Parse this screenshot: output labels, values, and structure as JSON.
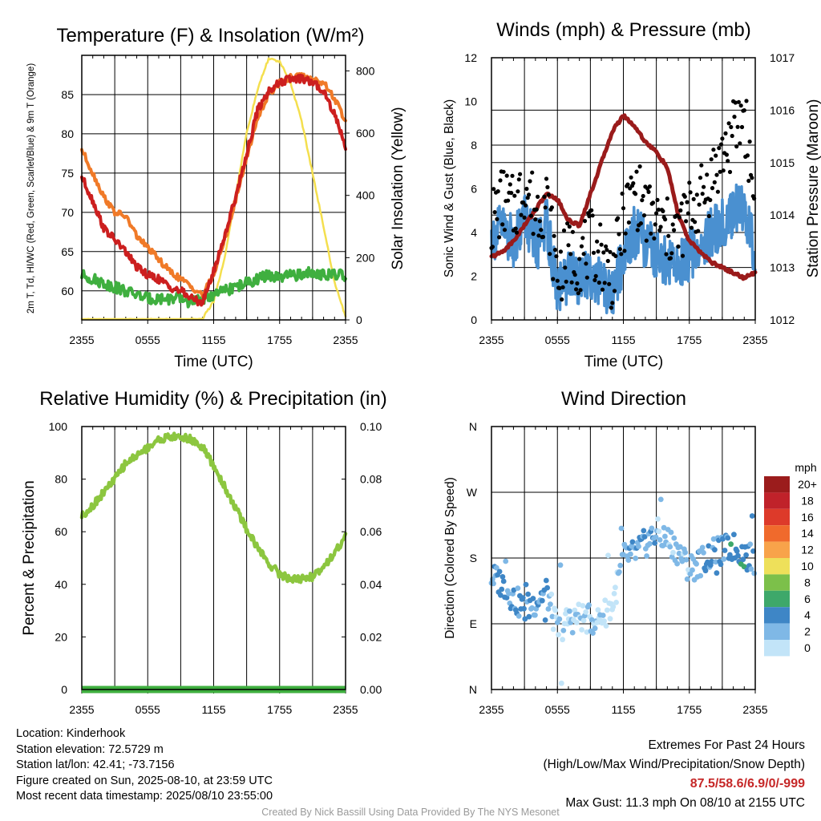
{
  "colors": {
    "temp_red": "#cc1f1f",
    "dewpoint_green": "#3faf3f",
    "temp9m_orange": "#f07a28",
    "solar_yellow": "#f4df4e",
    "wind_blue": "#4a90d0",
    "gust_black": "#000000",
    "pressure_maroon": "#9a1b1b",
    "humidity_green": "#8cc63f",
    "precip_green": "#3faf3f",
    "extremes_red": "#c62828"
  },
  "chart_data": [
    {
      "id": "temperature",
      "type": "line",
      "title": "Temperature (F) & Insolation (W/m²)",
      "xlabel": "Time (UTC)",
      "ylabel_left": "2m T, Td, HI/WC (Red, Green, Scarlet/Blue) & 9m T (Orange)",
      "ylabel_right": "Solar Insolation (Yellow)",
      "x_ticks": [
        "2355",
        "0555",
        "1155",
        "1755",
        "2355"
      ],
      "y_ticks_left": [
        60,
        65,
        70,
        75,
        80,
        85
      ],
      "y_ticks_right": [
        0,
        200,
        400,
        600,
        800
      ],
      "ylim_left": [
        56.3,
        90.0
      ],
      "ylim_right": [
        0,
        850
      ],
      "x_hours": [
        0,
        1,
        2,
        3,
        4,
        5,
        6,
        7,
        8,
        9,
        10,
        11,
        12,
        13,
        14,
        15,
        16,
        17,
        18,
        19,
        20,
        21,
        22,
        23,
        24
      ],
      "series": [
        {
          "name": "2m T",
          "axis": "left",
          "color": "#cc1f1f",
          "values": [
            74.5,
            71.5,
            68.0,
            66.5,
            65.0,
            63.0,
            62.0,
            61.5,
            60.5,
            60.0,
            59.0,
            58.5,
            62.5,
            67.0,
            72.0,
            77.5,
            83.0,
            85.5,
            86.5,
            87.0,
            87.0,
            86.5,
            85.5,
            82.5,
            78.5
          ]
        },
        {
          "name": "9m T",
          "axis": "left",
          "color": "#f07a28",
          "values": [
            78.0,
            75.0,
            72.0,
            70.0,
            69.5,
            67.0,
            65.5,
            64.0,
            62.5,
            61.5,
            60.5,
            59.5,
            62.0,
            66.5,
            71.5,
            77.0,
            82.0,
            85.0,
            86.5,
            87.2,
            87.3,
            87.0,
            86.5,
            84.5,
            81.5
          ]
        },
        {
          "name": "2m Td",
          "axis": "left",
          "color": "#3faf3f",
          "values": [
            62.0,
            61.5,
            61.0,
            60.5,
            60.0,
            59.5,
            59.0,
            59.0,
            59.0,
            59.0,
            58.5,
            59.0,
            59.5,
            60.0,
            60.5,
            61.0,
            61.5,
            62.0,
            61.5,
            62.0,
            62.0,
            62.5,
            62.0,
            62.0,
            62.0
          ]
        },
        {
          "name": "Solar",
          "axis": "right",
          "color": "#f4df4e",
          "values": [
            0,
            0,
            0,
            0,
            0,
            0,
            0,
            0,
            0,
            0,
            0,
            5,
            60,
            200,
            400,
            600,
            740,
            840,
            830,
            760,
            640,
            470,
            300,
            120,
            10
          ]
        }
      ]
    },
    {
      "id": "winds",
      "type": "scatter",
      "title": "Winds (mph) & Pressure (mb)",
      "xlabel": "Time (UTC)",
      "ylabel_left": "Sonic Wind & Gust (Blue, Black)",
      "ylabel_right": "Station Pressure (Maroon)",
      "x_ticks": [
        "2355",
        "0555",
        "1155",
        "1755",
        "2355"
      ],
      "y_ticks_left": [
        0,
        2,
        4,
        6,
        8,
        10,
        12
      ],
      "y_ticks_right": [
        1012,
        1013,
        1014,
        1015,
        1016,
        1017
      ],
      "ylim_left": [
        0,
        12
      ],
      "ylim_right": [
        1012,
        1017
      ],
      "x_hours": [
        0,
        1,
        2,
        3,
        4,
        5,
        6,
        7,
        8,
        9,
        10,
        11,
        12,
        13,
        14,
        15,
        16,
        17,
        18,
        19,
        20,
        21,
        22,
        23,
        24
      ],
      "series": [
        {
          "name": "Sonic Wind",
          "axis": "left",
          "color": "#4a90d0",
          "values": [
            3.8,
            4.2,
            3.5,
            4.8,
            3.2,
            4.5,
            1.2,
            2.0,
            1.8,
            2.2,
            1.6,
            1.0,
            3.0,
            4.0,
            3.5,
            3.0,
            2.5,
            2.5,
            3.0,
            3.2,
            4.0,
            4.5,
            5.0,
            5.2,
            3.0
          ]
        },
        {
          "name": "Gust",
          "axis": "left",
          "color": "#000000",
          "values": [
            4.5,
            5.5,
            5.0,
            6.2,
            5.0,
            5.5,
            2.0,
            3.0,
            2.8,
            3.5,
            3.0,
            2.0,
            4.5,
            6.0,
            5.0,
            4.5,
            4.0,
            4.0,
            5.0,
            5.5,
            6.5,
            7.5,
            8.5,
            9.5,
            5.0
          ]
        },
        {
          "name": "Station Pressure",
          "axis": "right",
          "color": "#9a1b1b",
          "values": [
            1013.2,
            1013.3,
            1013.5,
            1013.8,
            1014.1,
            1014.4,
            1014.3,
            1013.9,
            1013.8,
            1014.4,
            1015.0,
            1015.6,
            1015.9,
            1015.7,
            1015.4,
            1015.2,
            1014.9,
            1014.0,
            1013.5,
            1013.3,
            1013.1,
            1013.0,
            1012.9,
            1012.8,
            1012.9
          ]
        }
      ]
    },
    {
      "id": "humidity",
      "type": "line",
      "title": "Relative Humidity (%) & Precipitation (in)",
      "ylabel_left": "Percent & Precipitation",
      "x_ticks": [
        "2355",
        "0555",
        "1155",
        "1755",
        "2355"
      ],
      "y_ticks_left": [
        0,
        20,
        40,
        60,
        80,
        100
      ],
      "y_ticks_right": [
        "0.00",
        "0.02",
        "0.04",
        "0.06",
        "0.08",
        "0.10"
      ],
      "ylim_left": [
        0,
        100
      ],
      "ylim_right": [
        0,
        0.1
      ],
      "x_hours": [
        0,
        1,
        2,
        3,
        4,
        5,
        6,
        7,
        8,
        9,
        10,
        11,
        12,
        13,
        14,
        15,
        16,
        17,
        18,
        19,
        20,
        21,
        22,
        23,
        24
      ],
      "series": [
        {
          "name": "Relative Humidity",
          "axis": "left",
          "color": "#8cc63f",
          "values": [
            66,
            70,
            75,
            80,
            86,
            89,
            92,
            95,
            96,
            96,
            95,
            92,
            85,
            77,
            69,
            61,
            54,
            48,
            44,
            42,
            42,
            43,
            47,
            52,
            58
          ]
        },
        {
          "name": "Precipitation",
          "axis": "right",
          "color": "#3faf3f",
          "values": [
            0,
            0,
            0,
            0,
            0,
            0,
            0,
            0,
            0,
            0,
            0,
            0,
            0,
            0,
            0,
            0,
            0,
            0,
            0,
            0,
            0,
            0,
            0,
            0,
            0
          ]
        }
      ]
    },
    {
      "id": "direction",
      "type": "scatter",
      "title": "Wind Direction",
      "ylabel_left": "Direction (Colored By Speed)",
      "x_ticks": [
        "2355",
        "0555",
        "1155",
        "1755",
        "2355"
      ],
      "y_ticks_left": [
        "N",
        "E",
        "S",
        "W",
        "N"
      ],
      "ylim_left": [
        0,
        360
      ],
      "x_hours": [
        0,
        1,
        2,
        3,
        4,
        5,
        6,
        7,
        8,
        9,
        10,
        11,
        12,
        13,
        14,
        15,
        16,
        17,
        18,
        19,
        20,
        21,
        22,
        23,
        24
      ],
      "direction_deg": [
        155,
        145,
        125,
        110,
        120,
        135,
        80,
        95,
        100,
        95,
        100,
        115,
        180,
        185,
        200,
        215,
        205,
        190,
        165,
        175,
        185,
        190,
        195,
        185,
        175
      ],
      "speed_mph": [
        3.8,
        4.2,
        3.5,
        4.8,
        3.2,
        4.5,
        1.2,
        2.0,
        1.8,
        2.2,
        1.6,
        1.0,
        3.0,
        4.0,
        3.5,
        3.0,
        2.5,
        2.5,
        3.0,
        3.2,
        4.0,
        4.5,
        5.0,
        5.2,
        3.0
      ],
      "legend": {
        "unit": "mph",
        "labels": [
          "20+",
          "18",
          "16",
          "14",
          "12",
          "10",
          "8",
          "6",
          "4",
          "2",
          "0"
        ],
        "colors": [
          "#9b1c1c",
          "#c0222a",
          "#dd3a2a",
          "#f06a2c",
          "#f8a34a",
          "#eee05a",
          "#7cc04a",
          "#3ea86a",
          "#3e86c6",
          "#7fb8e6",
          "#c2e4f8"
        ]
      }
    }
  ],
  "info": {
    "location": "Location: Kinderhook",
    "elevation": "Station elevation: 72.5729 m",
    "latlon": "Station lat/lon: 42.41; -73.7156",
    "created": "Figure created on Sun, 2025-08-10, at 23:59 UTC",
    "recent": "Most recent data timestamp: 2025/08/10 23:55:00"
  },
  "extremes": {
    "title": "Extremes For Past 24 Hours",
    "subtitle": "(High/Low/Max Wind/Precipitation/Snow Depth)",
    "values": "87.5/58.6/6.9/0/-999",
    "max_gust": "Max Gust: 11.3 mph On 08/10 at 2155 UTC"
  },
  "credit": "Created By Nick Bassill Using Data Provided By The NYS Mesonet"
}
